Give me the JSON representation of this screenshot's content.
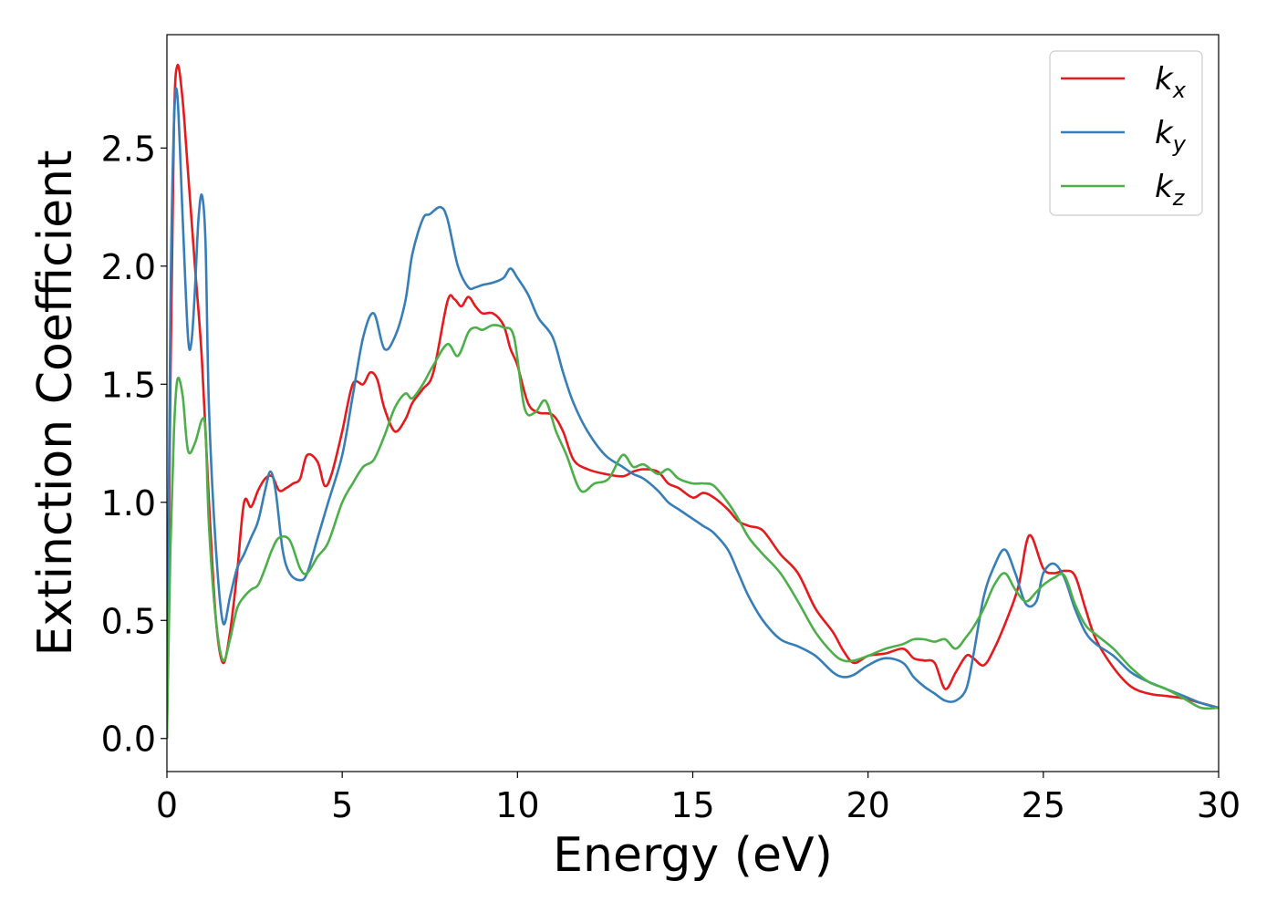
{
  "chart_data": {
    "type": "line",
    "xlabel": "Energy (eV)",
    "ylabel": "Extinction Coefficient",
    "xlim": [
      0,
      30
    ],
    "ylim": [
      -0.14,
      2.98
    ],
    "xticks": [
      "0",
      "5",
      "10",
      "15",
      "20",
      "25",
      "30"
    ],
    "yticks": [
      "0.0",
      "0.5",
      "1.0",
      "1.5",
      "2.0",
      "2.5"
    ],
    "grid": false,
    "legend_position": "top-right",
    "series": [
      {
        "name": "k",
        "subscript": "x",
        "color": "#e41a1c",
        "x": [
          0,
          0.1,
          0.2,
          0.3,
          0.45,
          0.6,
          0.8,
          1.0,
          1.2,
          1.4,
          1.6,
          1.8,
          2.0,
          2.2,
          2.4,
          2.6,
          2.8,
          3.0,
          3.2,
          3.4,
          3.6,
          3.8,
          4.0,
          4.3,
          4.5,
          4.7,
          5.0,
          5.3,
          5.6,
          5.8,
          6.0,
          6.2,
          6.5,
          6.8,
          7.0,
          7.3,
          7.6,
          8.0,
          8.2,
          8.4,
          8.6,
          8.8,
          9.0,
          9.3,
          9.6,
          9.8,
          10.0,
          10.3,
          10.6,
          11.0,
          11.3,
          11.6,
          12.0,
          12.5,
          13.0,
          13.3,
          13.6,
          14.0,
          14.3,
          14.6,
          15.0,
          15.3,
          15.6,
          16.0,
          16.3,
          16.6,
          17.0,
          17.5,
          18.0,
          18.5,
          19.0,
          19.3,
          19.6,
          20.0,
          20.5,
          21.0,
          21.3,
          21.6,
          21.9,
          22.2,
          22.5,
          22.8,
          23.0,
          23.3,
          23.6,
          24.0,
          24.3,
          24.6,
          25.0,
          25.3,
          25.6,
          25.9,
          26.2,
          26.5,
          27.0,
          27.5,
          28.0,
          28.5,
          29.0,
          29.5,
          30.0
        ],
        "y": [
          0.0,
          1.5,
          2.6,
          2.85,
          2.7,
          2.4,
          2.0,
          1.6,
          1.0,
          0.5,
          0.32,
          0.45,
          0.7,
          1.0,
          0.98,
          1.05,
          1.1,
          1.11,
          1.05,
          1.06,
          1.08,
          1.1,
          1.2,
          1.17,
          1.07,
          1.12,
          1.3,
          1.5,
          1.5,
          1.55,
          1.52,
          1.4,
          1.3,
          1.35,
          1.42,
          1.48,
          1.55,
          1.85,
          1.86,
          1.83,
          1.87,
          1.83,
          1.8,
          1.8,
          1.75,
          1.65,
          1.58,
          1.42,
          1.38,
          1.37,
          1.3,
          1.18,
          1.14,
          1.12,
          1.11,
          1.13,
          1.14,
          1.13,
          1.08,
          1.06,
          1.02,
          1.04,
          1.02,
          0.97,
          0.92,
          0.9,
          0.88,
          0.78,
          0.7,
          0.55,
          0.45,
          0.37,
          0.32,
          0.35,
          0.36,
          0.38,
          0.34,
          0.33,
          0.32,
          0.21,
          0.28,
          0.35,
          0.34,
          0.31,
          0.38,
          0.52,
          0.65,
          0.86,
          0.72,
          0.7,
          0.71,
          0.69,
          0.55,
          0.42,
          0.3,
          0.22,
          0.19,
          0.18,
          0.17,
          0.15,
          0.13
        ]
      },
      {
        "name": "k",
        "subscript": "y",
        "color": "#377eb8",
        "x": [
          0,
          0.1,
          0.2,
          0.3,
          0.45,
          0.6,
          0.7,
          0.8,
          0.9,
          1.0,
          1.1,
          1.2,
          1.4,
          1.6,
          1.8,
          2.0,
          2.2,
          2.4,
          2.6,
          2.8,
          2.95,
          3.1,
          3.3,
          3.5,
          3.8,
          4.0,
          4.3,
          4.6,
          5.0,
          5.3,
          5.6,
          5.9,
          6.2,
          6.5,
          6.8,
          7.0,
          7.3,
          7.5,
          7.8,
          8.0,
          8.3,
          8.6,
          8.8,
          9.0,
          9.3,
          9.6,
          9.8,
          10.0,
          10.3,
          10.6,
          11.0,
          11.3,
          11.6,
          12.0,
          12.5,
          13.0,
          13.3,
          13.6,
          14.0,
          14.3,
          14.6,
          15.0,
          15.3,
          15.6,
          16.0,
          16.3,
          16.6,
          17.0,
          17.5,
          18.0,
          18.5,
          19.0,
          19.3,
          19.6,
          20.0,
          20.5,
          21.0,
          21.3,
          21.6,
          21.9,
          22.2,
          22.5,
          22.8,
          23.0,
          23.3,
          23.6,
          23.9,
          24.2,
          24.5,
          24.8,
          25.0,
          25.3,
          25.6,
          25.9,
          26.2,
          26.5,
          27.0,
          27.5,
          28.0,
          28.5,
          29.0,
          29.5,
          30.0
        ],
        "y": [
          0.0,
          1.8,
          2.6,
          2.72,
          2.2,
          1.7,
          1.68,
          1.9,
          2.2,
          2.3,
          2.1,
          1.4,
          0.8,
          0.49,
          0.6,
          0.72,
          0.78,
          0.85,
          0.92,
          1.05,
          1.13,
          1.05,
          0.8,
          0.7,
          0.67,
          0.7,
          0.85,
          1.0,
          1.2,
          1.45,
          1.7,
          1.8,
          1.65,
          1.7,
          1.85,
          2.05,
          2.2,
          2.22,
          2.25,
          2.2,
          2.0,
          1.91,
          1.91,
          1.92,
          1.93,
          1.95,
          1.99,
          1.95,
          1.88,
          1.78,
          1.7,
          1.55,
          1.42,
          1.3,
          1.2,
          1.15,
          1.12,
          1.1,
          1.05,
          1.0,
          0.97,
          0.93,
          0.9,
          0.87,
          0.8,
          0.7,
          0.6,
          0.5,
          0.42,
          0.39,
          0.35,
          0.28,
          0.26,
          0.27,
          0.31,
          0.34,
          0.32,
          0.26,
          0.22,
          0.19,
          0.16,
          0.16,
          0.21,
          0.35,
          0.6,
          0.73,
          0.8,
          0.7,
          0.57,
          0.58,
          0.7,
          0.74,
          0.68,
          0.55,
          0.45,
          0.4,
          0.35,
          0.28,
          0.24,
          0.21,
          0.18,
          0.15,
          0.13
        ]
      },
      {
        "name": "k",
        "subscript": "z",
        "color": "#4daf4a",
        "x": [
          0,
          0.1,
          0.2,
          0.3,
          0.45,
          0.6,
          0.8,
          1.0,
          1.1,
          1.2,
          1.4,
          1.6,
          1.8,
          2.0,
          2.2,
          2.4,
          2.6,
          2.8,
          3.0,
          3.2,
          3.5,
          3.8,
          4.0,
          4.3,
          4.6,
          5.0,
          5.3,
          5.6,
          5.9,
          6.2,
          6.5,
          6.8,
          7.0,
          7.3,
          7.6,
          8.0,
          8.3,
          8.6,
          8.8,
          9.0,
          9.3,
          9.6,
          9.9,
          10.2,
          10.5,
          10.8,
          11.1,
          11.4,
          11.8,
          12.2,
          12.6,
          13.0,
          13.3,
          13.6,
          14.0,
          14.3,
          14.6,
          15.0,
          15.3,
          15.6,
          16.0,
          16.3,
          16.6,
          17.0,
          17.5,
          18.0,
          18.5,
          19.0,
          19.3,
          19.6,
          20.0,
          20.5,
          21.0,
          21.3,
          21.6,
          21.9,
          22.2,
          22.5,
          22.8,
          23.0,
          23.3,
          23.6,
          23.9,
          24.2,
          24.5,
          24.8,
          25.0,
          25.3,
          25.6,
          25.9,
          26.2,
          26.5,
          27.0,
          27.5,
          28.0,
          28.5,
          29.0,
          29.5,
          30.0
        ],
        "y": [
          0.0,
          0.8,
          1.3,
          1.52,
          1.45,
          1.22,
          1.25,
          1.35,
          1.3,
          0.9,
          0.5,
          0.33,
          0.42,
          0.55,
          0.6,
          0.63,
          0.65,
          0.72,
          0.8,
          0.85,
          0.84,
          0.72,
          0.7,
          0.77,
          0.83,
          1.0,
          1.08,
          1.15,
          1.18,
          1.28,
          1.4,
          1.46,
          1.44,
          1.5,
          1.58,
          1.67,
          1.62,
          1.72,
          1.74,
          1.73,
          1.75,
          1.74,
          1.7,
          1.4,
          1.38,
          1.43,
          1.3,
          1.2,
          1.05,
          1.08,
          1.1,
          1.2,
          1.15,
          1.16,
          1.12,
          1.14,
          1.1,
          1.08,
          1.08,
          1.07,
          1.0,
          0.93,
          0.85,
          0.78,
          0.7,
          0.58,
          0.45,
          0.36,
          0.33,
          0.33,
          0.35,
          0.38,
          0.4,
          0.42,
          0.42,
          0.41,
          0.42,
          0.38,
          0.43,
          0.47,
          0.55,
          0.65,
          0.7,
          0.63,
          0.58,
          0.62,
          0.65,
          0.68,
          0.69,
          0.57,
          0.48,
          0.44,
          0.38,
          0.3,
          0.24,
          0.21,
          0.17,
          0.13,
          0.13
        ]
      }
    ]
  }
}
